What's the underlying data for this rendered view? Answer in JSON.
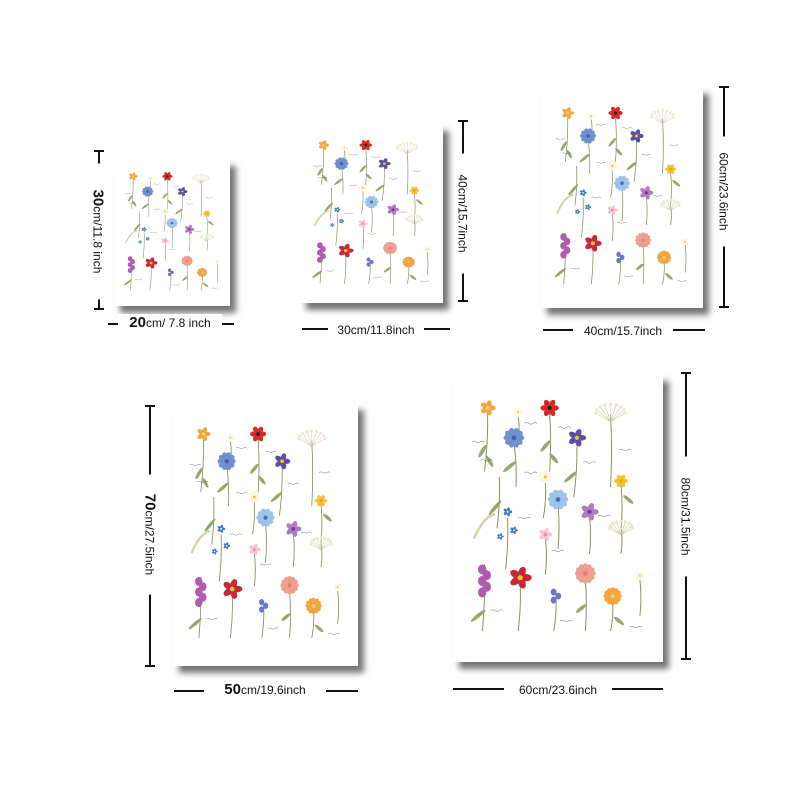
{
  "dimensions": [
    {
      "width_value": "20",
      "width_rest": "cm/ 7.8 inch",
      "height_value": "30",
      "height_rest": "cm/11.8 inch"
    },
    {
      "width_value": "",
      "width_rest": "30cm/11.8inch",
      "height_value": "",
      "height_rest": "40cm/15.7inch"
    },
    {
      "width_value": "",
      "width_rest": "40cm/15.7inch",
      "height_value": "",
      "height_rest": "60cm/23.6inch"
    },
    {
      "width_value": "50",
      "width_rest": "cm/19.6inch",
      "height_value": "70",
      "height_rest": "cm/27.5inch"
    },
    {
      "width_value": "",
      "width_rest": "60cm/23.6inch",
      "height_value": "",
      "height_rest": "80cm/31.5inch"
    }
  ],
  "colors": {
    "poppy": "#d62a22",
    "cornflower": "#6f8fd0",
    "violet": "#5a4fa3",
    "mallow": "#b07ac6",
    "foxglove": "#b05ab0",
    "columbine": "#c62836",
    "daffodil": "#f2c230",
    "carnation": "#ef9f8f",
    "marigold": "#f3a640",
    "forget_me_not": "#3a7cc4",
    "stem": "#7b8f5a",
    "leaf": "#93a86a",
    "umbel": "#f1ebcf",
    "bluebell": "#6a76c6",
    "pink_blossom": "#f4c4d4"
  }
}
